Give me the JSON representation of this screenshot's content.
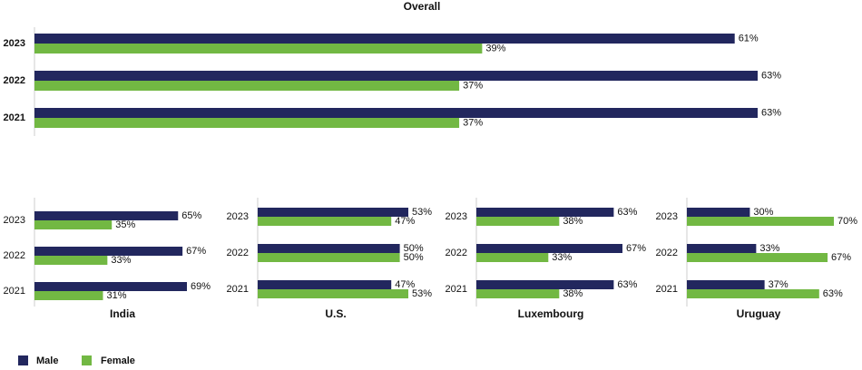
{
  "chart_data": [
    {
      "type": "bar",
      "title": "Overall",
      "categories": [
        "2023",
        "2022",
        "2021"
      ],
      "series": [
        {
          "name": "Male",
          "color": "#22275e",
          "values": [
            61,
            63,
            63
          ],
          "value_labels": [
            "61%",
            "63%",
            "63%"
          ]
        },
        {
          "name": "Female",
          "color": "#72b843",
          "values": [
            39,
            37,
            37
          ],
          "value_labels": [
            "39%",
            "37%",
            "37%"
          ]
        }
      ]
    },
    {
      "type": "bar",
      "title": "India",
      "categories": [
        "2023",
        "2022",
        "2021"
      ],
      "series": [
        {
          "color": "#22275e",
          "values": [
            65,
            67,
            69
          ],
          "value_labels": [
            "65%",
            "67%",
            "69%"
          ]
        },
        {
          "color": "#72b843",
          "values": [
            35,
            33,
            31
          ],
          "value_labels": [
            "35%",
            "33%",
            "31%"
          ]
        }
      ]
    },
    {
      "type": "bar",
      "title": "U.S.",
      "categories": [
        "2023",
        "2022",
        "2021"
      ],
      "series": [
        {
          "color": "#22275e",
          "values": [
            53,
            50,
            47
          ],
          "value_labels": [
            "53%",
            "50%",
            "47%"
          ]
        },
        {
          "color": "#72b843",
          "values": [
            47,
            50,
            53
          ],
          "value_labels": [
            "47%",
            "50%",
            "53%"
          ]
        }
      ]
    },
    {
      "type": "bar",
      "title": "Luxembourg",
      "categories": [
        "2023",
        "2022",
        "2021"
      ],
      "series": [
        {
          "color": "#22275e",
          "values": [
            63,
            67,
            63
          ],
          "value_labels": [
            "63%",
            "67%",
            "63%"
          ]
        },
        {
          "color": "#72b843",
          "values": [
            38,
            33,
            38
          ],
          "value_labels": [
            "38%",
            "33%",
            "38%"
          ]
        }
      ]
    },
    {
      "type": "bar",
      "title": "Uruguay",
      "categories": [
        "2023",
        "2022",
        "2021"
      ],
      "series": [
        {
          "color": "#22275e",
          "values": [
            30,
            33,
            37
          ],
          "value_labels": [
            "30%",
            "33%",
            "37%"
          ]
        },
        {
          "color": "#72b843",
          "values": [
            70,
            67,
            63
          ],
          "value_labels": [
            "70%",
            "67%",
            "63%"
          ]
        }
      ]
    }
  ]
}
